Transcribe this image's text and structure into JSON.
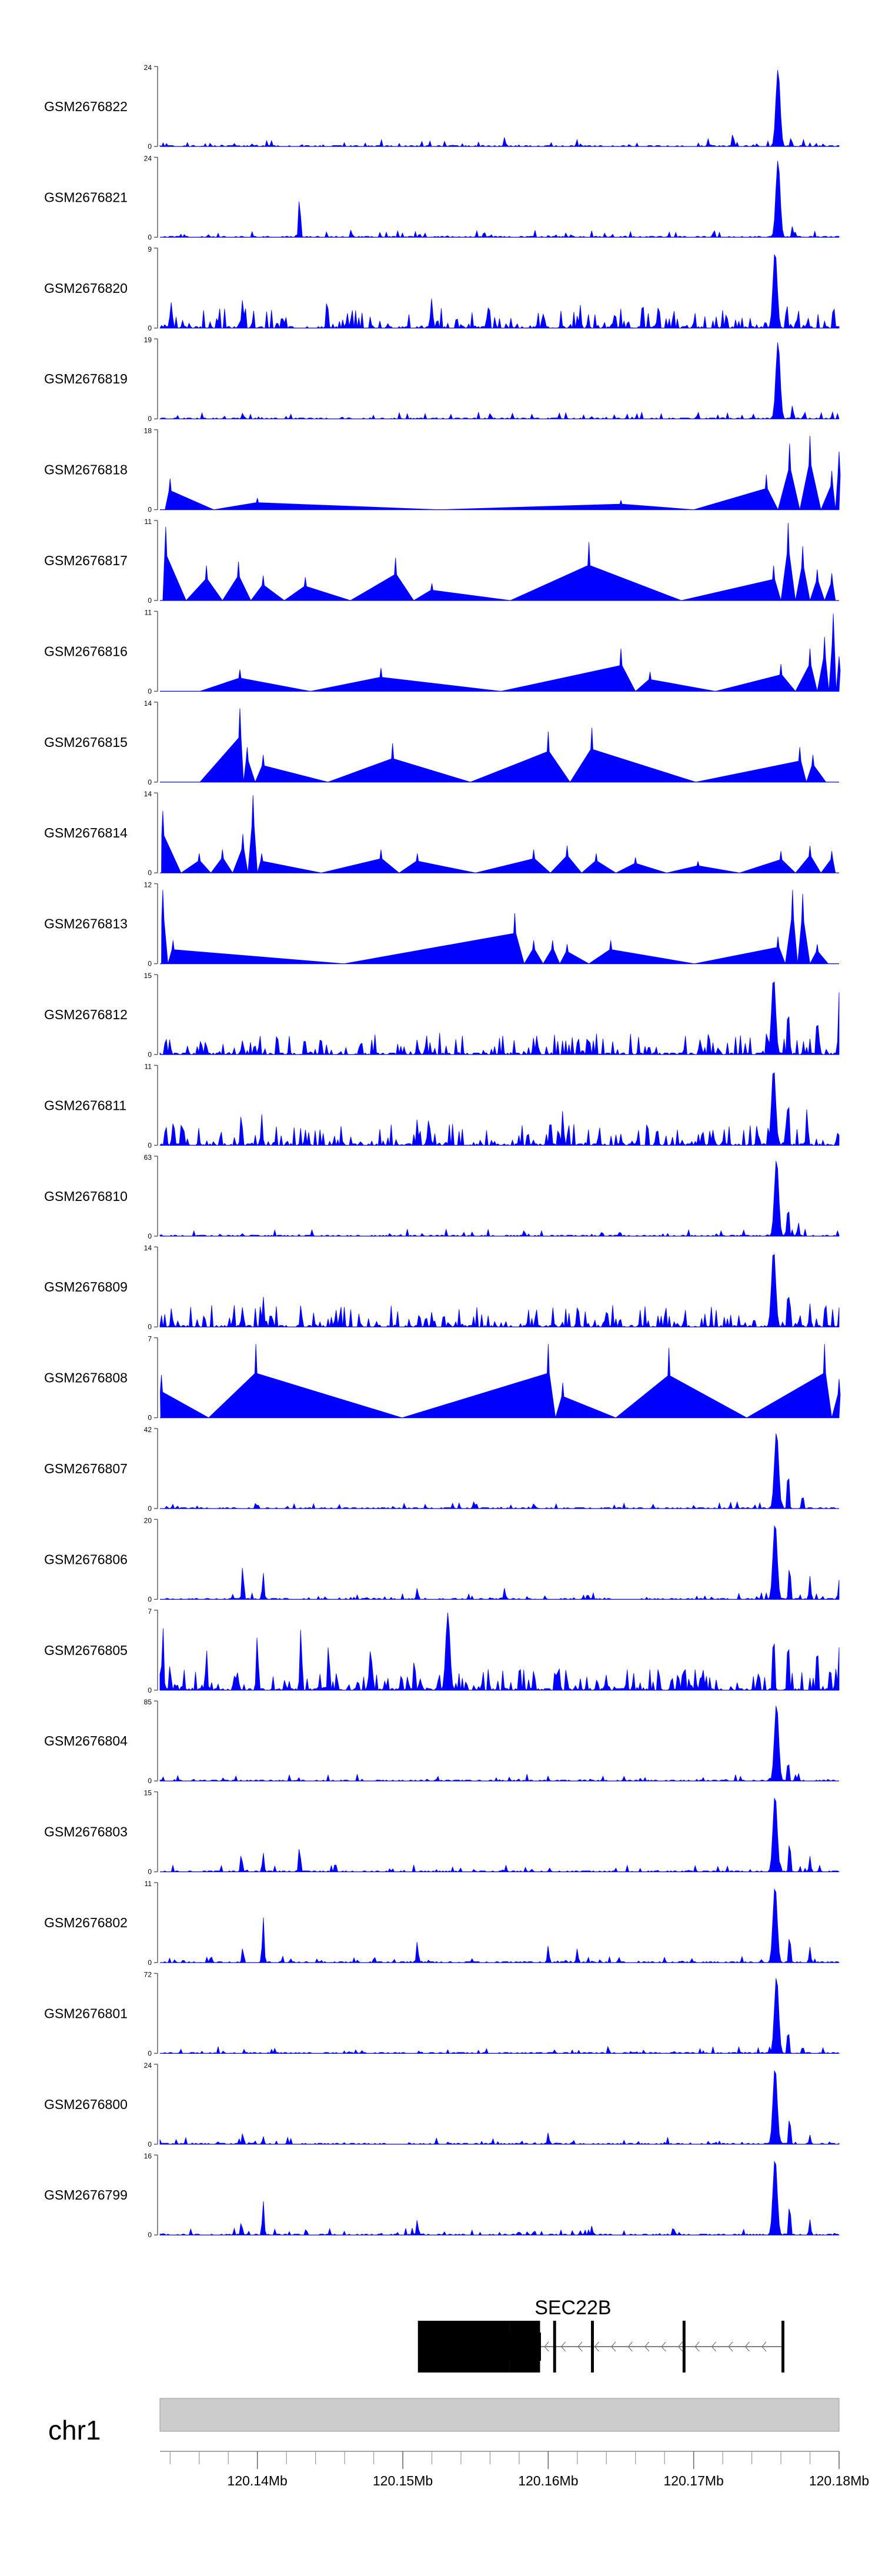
{
  "chart_data": {
    "type": "area",
    "title": "",
    "chromosome": "chr1",
    "xlim": [
      120.1333,
      120.18
    ],
    "x_ticks": [
      120.14,
      120.15,
      120.16,
      120.17,
      120.18
    ],
    "x_tick_labels": [
      "120.14Mb",
      "120.15Mb",
      "120.16Mb",
      "120.17Mb",
      "120.18Mb"
    ],
    "minor_tick_step": 0.002,
    "series_color": "#0000ff",
    "tracks": [
      {
        "name": "GSM2676822",
        "ymax": 24,
        "profile": "dense",
        "seed": 1,
        "peaks": [
          [
            120.157,
            0.12
          ],
          [
            120.171,
            0.1
          ],
          [
            120.1727,
            0.18
          ],
          [
            120.1758,
            1.0
          ],
          [
            120.1767,
            0.12
          ]
        ]
      },
      {
        "name": "GSM2676821",
        "ymax": 24,
        "profile": "dense",
        "seed": 2,
        "peaks": [
          [
            120.1429,
            0.55
          ],
          [
            120.1556,
            0.08
          ],
          [
            120.1714,
            0.1
          ],
          [
            120.1758,
            1.0
          ],
          [
            120.1768,
            0.15
          ]
        ]
      },
      {
        "name": "GSM2676820",
        "ymax": 9,
        "profile": "busy",
        "seed": 3,
        "peaks": [
          [
            120.1341,
            0.35
          ],
          [
            120.139,
            0.4
          ],
          [
            120.1448,
            0.42
          ],
          [
            120.152,
            0.4
          ],
          [
            120.1622,
            0.3
          ],
          [
            120.1756,
            1.0
          ],
          [
            120.1764,
            0.35
          ]
        ]
      },
      {
        "name": "GSM2676819",
        "ymax": 19,
        "profile": "dense",
        "seed": 4,
        "peaks": [
          [
            120.139,
            0.08
          ],
          [
            120.156,
            0.07
          ],
          [
            120.1703,
            0.09
          ],
          [
            120.1758,
            1.0
          ],
          [
            120.1768,
            0.18
          ]
        ]
      },
      {
        "name": "GSM2676818",
        "ymax": 18,
        "profile": "sparse",
        "seed": 5,
        "peaks": [
          [
            120.134,
            0.4
          ],
          [
            120.14,
            0.15
          ],
          [
            120.165,
            0.12
          ],
          [
            120.175,
            0.45
          ],
          [
            120.1766,
            0.85
          ],
          [
            120.178,
            0.95
          ],
          [
            120.1795,
            0.5
          ],
          [
            120.18,
            0.75
          ]
        ]
      },
      {
        "name": "GSM2676817",
        "ymax": 11,
        "profile": "sparse",
        "seed": 6,
        "peaks": [
          [
            120.1337,
            0.95
          ],
          [
            120.1365,
            0.45
          ],
          [
            120.1387,
            0.5
          ],
          [
            120.1404,
            0.32
          ],
          [
            120.1433,
            0.3
          ],
          [
            120.1495,
            0.55
          ],
          [
            120.152,
            0.22
          ],
          [
            120.1628,
            0.75
          ],
          [
            120.1755,
            0.45
          ],
          [
            120.1765,
            1.0
          ],
          [
            120.1775,
            0.7
          ],
          [
            120.1785,
            0.4
          ],
          [
            120.1795,
            0.35
          ]
        ]
      },
      {
        "name": "GSM2676816",
        "ymax": 11,
        "profile": "sparse",
        "seed": 7,
        "peaks": [
          [
            120.1388,
            0.28
          ],
          [
            120.1485,
            0.3
          ],
          [
            120.165,
            0.55
          ],
          [
            120.167,
            0.25
          ],
          [
            120.176,
            0.35
          ],
          [
            120.178,
            0.55
          ],
          [
            120.179,
            0.7
          ],
          [
            120.1796,
            1.0
          ],
          [
            120.18,
            0.45
          ]
        ]
      },
      {
        "name": "GSM2676815",
        "ymax": 14,
        "profile": "sparse",
        "seed": 8,
        "peaks": [
          [
            120.1388,
            0.95
          ],
          [
            120.1393,
            0.45
          ],
          [
            120.1404,
            0.35
          ],
          [
            120.1493,
            0.5
          ],
          [
            120.16,
            0.65
          ],
          [
            120.163,
            0.7
          ],
          [
            120.1773,
            0.45
          ],
          [
            120.1782,
            0.35
          ]
        ]
      },
      {
        "name": "GSM2676814",
        "ymax": 14,
        "profile": "sparse",
        "seed": 9,
        "peaks": [
          [
            120.1335,
            0.8
          ],
          [
            120.136,
            0.25
          ],
          [
            120.1376,
            0.3
          ],
          [
            120.139,
            0.5
          ],
          [
            120.1397,
            1.0
          ],
          [
            120.1403,
            0.25
          ],
          [
            120.1485,
            0.3
          ],
          [
            120.151,
            0.25
          ],
          [
            120.159,
            0.3
          ],
          [
            120.1613,
            0.35
          ],
          [
            120.1633,
            0.25
          ],
          [
            120.166,
            0.2
          ],
          [
            120.1703,
            0.15
          ],
          [
            120.176,
            0.28
          ],
          [
            120.178,
            0.35
          ],
          [
            120.1795,
            0.28
          ]
        ]
      },
      {
        "name": "GSM2676813",
        "ymax": 12,
        "profile": "sparse",
        "seed": 10,
        "peaks": [
          [
            120.1335,
            0.95
          ],
          [
            120.1342,
            0.3
          ],
          [
            120.1577,
            0.65
          ],
          [
            120.159,
            0.3
          ],
          [
            120.1603,
            0.3
          ],
          [
            120.1613,
            0.25
          ],
          [
            120.1643,
            0.3
          ],
          [
            120.1758,
            0.35
          ],
          [
            120.1768,
            0.95
          ],
          [
            120.1775,
            0.9
          ],
          [
            120.1785,
            0.25
          ]
        ]
      },
      {
        "name": "GSM2676812",
        "ymax": 15,
        "profile": "busy",
        "seed": 11,
        "peaks": [
          [
            120.1337,
            0.25
          ],
          [
            120.139,
            0.2
          ],
          [
            120.151,
            0.2
          ],
          [
            120.159,
            0.22
          ],
          [
            120.1755,
            1.0
          ],
          [
            120.1765,
            0.7
          ],
          [
            120.1785,
            0.55
          ],
          [
            120.18,
            0.8
          ]
        ]
      },
      {
        "name": "GSM2676811",
        "ymax": 11,
        "profile": "busy",
        "seed": 12,
        "peaks": [
          [
            120.1337,
            0.3
          ],
          [
            120.1389,
            0.45
          ],
          [
            120.1403,
            0.4
          ],
          [
            120.1433,
            0.2
          ],
          [
            120.151,
            0.35
          ],
          [
            120.1518,
            0.4
          ],
          [
            120.1586,
            0.2
          ],
          [
            120.161,
            0.45
          ],
          [
            120.165,
            0.15
          ],
          [
            120.1755,
            1.0
          ],
          [
            120.1765,
            0.7
          ],
          [
            120.1778,
            0.5
          ]
        ]
      },
      {
        "name": "GSM2676810",
        "ymax": 63,
        "profile": "dense",
        "seed": 13,
        "peaks": [
          [
            120.1757,
            1.0
          ],
          [
            120.1765,
            0.45
          ],
          [
            120.1772,
            0.18
          ]
        ]
      },
      {
        "name": "GSM2676809",
        "ymax": 14,
        "profile": "busy",
        "seed": 14,
        "peaks": [
          [
            120.1341,
            0.25
          ],
          [
            120.139,
            0.25
          ],
          [
            120.1404,
            0.4
          ],
          [
            120.143,
            0.3
          ],
          [
            120.152,
            0.2
          ],
          [
            120.162,
            0.25
          ],
          [
            120.1755,
            1.0
          ],
          [
            120.1765,
            0.55
          ],
          [
            120.178,
            0.3
          ]
        ]
      },
      {
        "name": "GSM2676808",
        "ymax": 7,
        "profile": "sparse",
        "seed": 15,
        "peaks": [
          [
            120.1334,
            0.55
          ],
          [
            120.1399,
            0.95
          ],
          [
            120.16,
            0.95
          ],
          [
            120.161,
            0.45
          ],
          [
            120.1683,
            0.9
          ],
          [
            120.179,
            0.95
          ],
          [
            120.18,
            0.5
          ]
        ]
      },
      {
        "name": "GSM2676807",
        "ymax": 42,
        "profile": "dense",
        "seed": 16,
        "peaks": [
          [
            120.1399,
            0.08
          ],
          [
            120.1757,
            1.0
          ],
          [
            120.1765,
            0.55
          ],
          [
            120.1775,
            0.2
          ]
        ]
      },
      {
        "name": "GSM2676806",
        "ymax": 20,
        "profile": "dense",
        "seed": 17,
        "peaks": [
          [
            120.139,
            0.45
          ],
          [
            120.1404,
            0.35
          ],
          [
            120.151,
            0.15
          ],
          [
            120.157,
            0.15
          ],
          [
            120.1756,
            1.0
          ],
          [
            120.1766,
            0.5
          ],
          [
            120.178,
            0.3
          ],
          [
            120.18,
            0.25
          ]
        ]
      },
      {
        "name": "GSM2676805",
        "ymax": 7,
        "profile": "busy",
        "seed": 18,
        "peaks": [
          [
            120.1335,
            0.85
          ],
          [
            120.134,
            0.35
          ],
          [
            120.1365,
            0.55
          ],
          [
            120.14,
            0.75
          ],
          [
            120.143,
            0.85
          ],
          [
            120.1449,
            0.65
          ],
          [
            120.1478,
            0.65
          ],
          [
            120.1508,
            0.45
          ],
          [
            120.1531,
            1.0
          ],
          [
            120.159,
            0.25
          ],
          [
            120.164,
            0.2
          ],
          [
            120.1685,
            0.2
          ],
          [
            120.1755,
            0.85
          ],
          [
            120.1765,
            0.75
          ],
          [
            120.1785,
            0.65
          ],
          [
            120.18,
            0.55
          ]
        ]
      },
      {
        "name": "GSM2676804",
        "ymax": 85,
        "profile": "dense",
        "seed": 19,
        "peaks": [
          [
            120.1757,
            1.0
          ],
          [
            120.1765,
            0.3
          ],
          [
            120.1772,
            0.1
          ]
        ]
      },
      {
        "name": "GSM2676803",
        "ymax": 15,
        "profile": "dense",
        "seed": 20,
        "peaks": [
          [
            120.1389,
            0.25
          ],
          [
            120.1404,
            0.25
          ],
          [
            120.1429,
            0.35
          ],
          [
            120.1756,
            1.0
          ],
          [
            120.1766,
            0.45
          ],
          [
            120.178,
            0.2
          ]
        ]
      },
      {
        "name": "GSM2676802",
        "ymax": 11,
        "profile": "dense",
        "seed": 21,
        "peaks": [
          [
            120.139,
            0.2
          ],
          [
            120.1404,
            0.6
          ],
          [
            120.151,
            0.28
          ],
          [
            120.16,
            0.22
          ],
          [
            120.162,
            0.18
          ],
          [
            120.1756,
            1.0
          ],
          [
            120.1766,
            0.4
          ],
          [
            120.178,
            0.2
          ]
        ]
      },
      {
        "name": "GSM2676801",
        "ymax": 72,
        "profile": "dense",
        "seed": 22,
        "peaks": [
          [
            120.1757,
            1.0
          ],
          [
            120.1765,
            0.35
          ],
          [
            120.1775,
            0.1
          ]
        ]
      },
      {
        "name": "GSM2676800",
        "ymax": 24,
        "profile": "dense",
        "seed": 23,
        "peaks": [
          [
            120.139,
            0.15
          ],
          [
            120.1404,
            0.1
          ],
          [
            120.16,
            0.15
          ],
          [
            120.1756,
            1.0
          ],
          [
            120.1766,
            0.4
          ],
          [
            120.178,
            0.12
          ]
        ]
      },
      {
        "name": "GSM2676799",
        "ymax": 16,
        "profile": "dense",
        "seed": 24,
        "peaks": [
          [
            120.1389,
            0.18
          ],
          [
            120.1404,
            0.45
          ],
          [
            120.151,
            0.2
          ],
          [
            120.163,
            0.12
          ],
          [
            120.1756,
            1.0
          ],
          [
            120.1766,
            0.45
          ],
          [
            120.178,
            0.2
          ]
        ]
      }
    ],
    "gene": {
      "name": "SEC22B",
      "strand": "-",
      "start": 120.1511,
      "end": 120.1762,
      "exons": [
        [
          120.1511,
          120.1574
        ],
        [
          120.1574,
          120.1595
        ],
        [
          120.1604,
          120.1606
        ],
        [
          120.163,
          120.1632
        ],
        [
          120.1693,
          120.1695
        ],
        [
          120.1761,
          120.1763
        ]
      ],
      "thick_end": 120.1574
    }
  }
}
